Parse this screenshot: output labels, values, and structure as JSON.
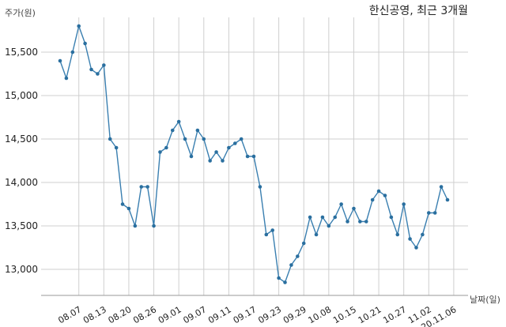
{
  "chart_data": {
    "type": "line",
    "title": "한신공영, 최근 3개월",
    "ylabel": "주가(원)",
    "xlabel": "날짜(일)",
    "ylim": [
      12700,
      15900
    ],
    "yticks": [
      13000,
      13500,
      14000,
      14500,
      15000,
      15500
    ],
    "ytick_labels": [
      "13,000",
      "13,500",
      "14,000",
      "14,500",
      "15,000",
      "15,500"
    ],
    "xtick_labels": [
      "08.07",
      "08.13",
      "08.20",
      "08.26",
      "09.01",
      "09.07",
      "09.11",
      "09.17",
      "09.23",
      "09.29",
      "10.08",
      "10.15",
      "10.21",
      "10.27",
      "11.02",
      "20.11.06"
    ],
    "xtick_index": [
      3,
      7,
      11,
      15,
      19,
      23,
      27,
      31,
      35,
      39,
      43,
      47,
      51,
      55,
      59,
      63
    ],
    "grid": true,
    "color": "#3a7fb0",
    "series": [
      {
        "values": [
          15400,
          15200,
          15500,
          15800,
          15600,
          15300,
          15250,
          15350,
          14500,
          14400,
          13750,
          13700,
          13500,
          13950,
          13950,
          13500,
          14350,
          14400,
          14600,
          14700,
          14500,
          14300,
          14600,
          14500,
          14250,
          14350,
          14250,
          14400,
          14450,
          14500,
          14300,
          14300,
          13950,
          13400,
          13450,
          12900,
          12850,
          13050,
          13150,
          13300,
          13600,
          13400,
          13600,
          13500,
          13600,
          13750,
          13550,
          13700,
          13550,
          13550,
          13800,
          13900,
          13850,
          13600,
          13400,
          13750,
          13350,
          13250,
          13400,
          13650,
          13650,
          13950,
          13800
        ]
      }
    ]
  }
}
